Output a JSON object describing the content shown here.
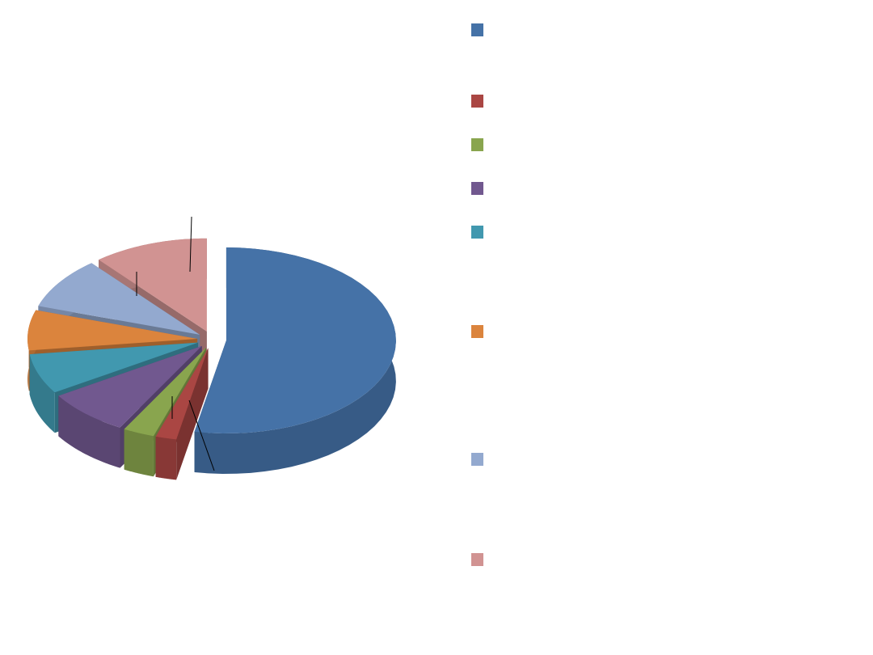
{
  "chart_data": {
    "type": "pie",
    "values": [
      53,
      2,
      3,
      8,
      7,
      7,
      9,
      11
    ],
    "colors": [
      "#4572a7",
      "#aa4643",
      "#89a54e",
      "#71588f",
      "#4198af",
      "#db843d",
      "#93a9cf",
      "#d19392"
    ],
    "three_d": true,
    "exploded": true,
    "legend": "right"
  }
}
